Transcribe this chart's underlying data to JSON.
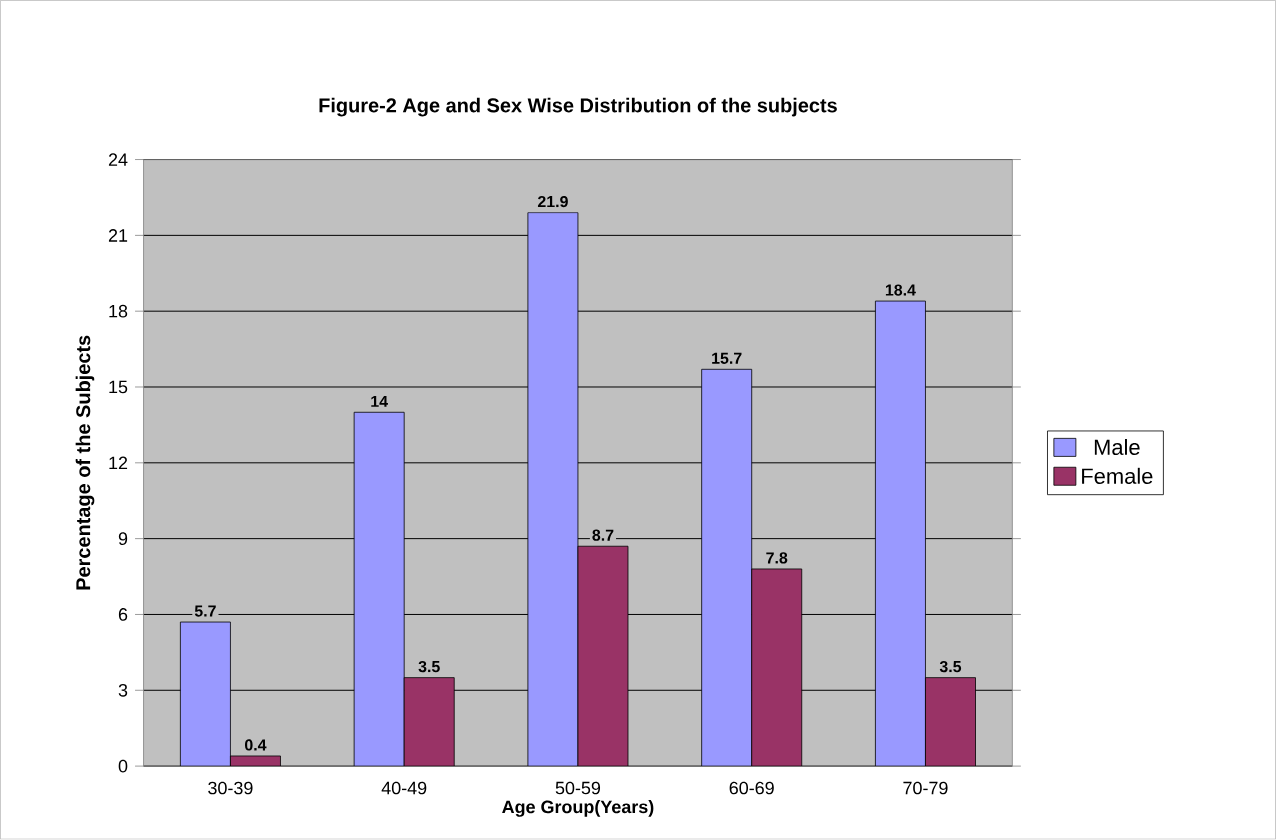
{
  "chart_data": {
    "type": "bar",
    "title": "Figure-2 Age and Sex Wise Distribution of the subjects",
    "xlabel": "Age Group(Years)",
    "ylabel": "Percentage of the Subjects",
    "categories": [
      "30-39",
      "40-49",
      "50-59",
      "60-69",
      "70-79"
    ],
    "series": [
      {
        "name": "Male",
        "color": "#9999ff",
        "values": [
          5.7,
          14,
          21.9,
          15.7,
          18.4
        ]
      },
      {
        "name": "Female",
        "color": "#993366",
        "values": [
          0.4,
          3.5,
          8.7,
          7.8,
          3.5
        ]
      }
    ],
    "ylim": [
      0,
      24
    ],
    "yticks": [
      0,
      3,
      6,
      9,
      12,
      15,
      18,
      21,
      24
    ],
    "grid": "y",
    "legend": "right",
    "data_labels": true
  }
}
